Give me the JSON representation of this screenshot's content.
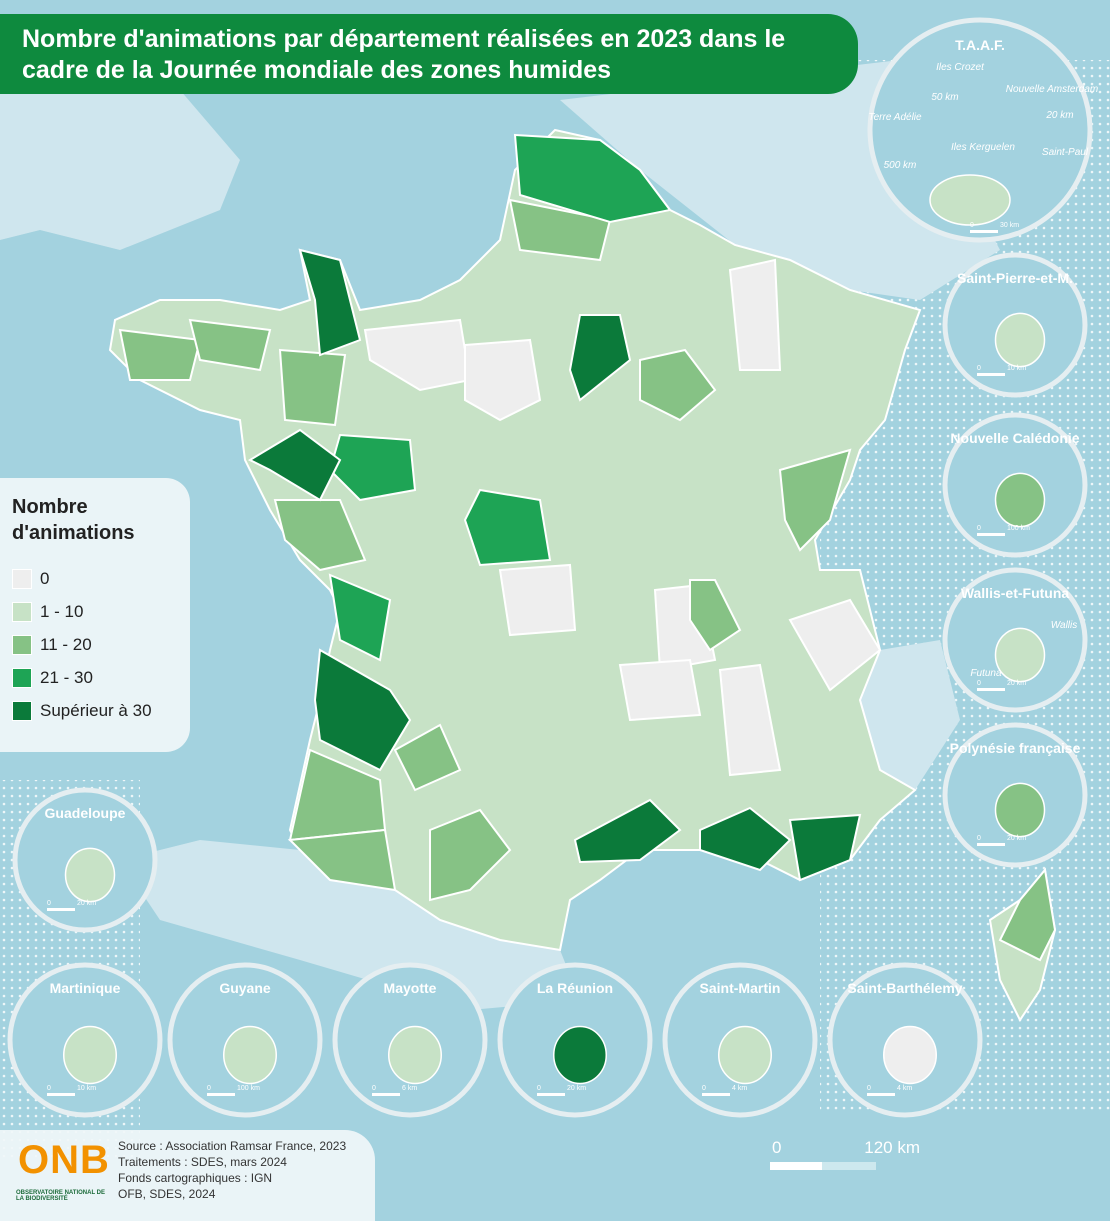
{
  "header": {
    "title": "Nombre d'animations par département réalisées en 2023 dans le cadre de la Journée mondiale des zones humides"
  },
  "legend": {
    "title": "Nombre d'animations",
    "items": [
      {
        "label": "0",
        "color": "#eeeeee"
      },
      {
        "label": "1 - 10",
        "color": "#c7e2c6"
      },
      {
        "label": "11 - 20",
        "color": "#86c285"
      },
      {
        "label": "21 - 30",
        "color": "#1ea455"
      },
      {
        "label": "Supérieur à 30",
        "color": "#0b7a3a"
      }
    ]
  },
  "insets": [
    {
      "name": "T.A.A.F.",
      "color": "#c7e2c6",
      "scale": [
        "0",
        "30 km"
      ],
      "labels": [
        "Iles Crozet",
        "Nouvelle Amsterdam",
        "Terre Adélie",
        "Iles Kerguelen",
        "Saint-Paul",
        "50 km",
        "20 km",
        "500 km"
      ]
    },
    {
      "name": "Saint-Pierre-et-M.",
      "color": "#c7e2c6",
      "scale": [
        "0",
        "10 km"
      ],
      "labels": []
    },
    {
      "name": "Nouvelle Calédonie",
      "color": "#86c285",
      "scale": [
        "0",
        "100 km"
      ],
      "labels": []
    },
    {
      "name": "Wallis-et-Futuna",
      "color": "#c7e2c6",
      "scale": [
        "0",
        "20 km"
      ],
      "labels": [
        "Wallis",
        "Futuna"
      ]
    },
    {
      "name": "Polynésie française",
      "color": "#86c285",
      "scale": [
        "0",
        "20 km"
      ],
      "labels": []
    },
    {
      "name": "Guadeloupe",
      "color": "#c7e2c6",
      "scale": [
        "0",
        "20 km"
      ],
      "labels": []
    },
    {
      "name": "Martinique",
      "color": "#c7e2c6",
      "scale": [
        "0",
        "10 km"
      ],
      "labels": []
    },
    {
      "name": "Guyane",
      "color": "#c7e2c6",
      "scale": [
        "0",
        "100 km"
      ],
      "labels": []
    },
    {
      "name": "Mayotte",
      "color": "#c7e2c6",
      "scale": [
        "0",
        "6 km"
      ],
      "labels": []
    },
    {
      "name": "La Réunion",
      "color": "#0b7a3a",
      "scale": [
        "0",
        "20 km"
      ],
      "labels": []
    },
    {
      "name": "Saint-Martin",
      "color": "#c7e2c6",
      "scale": [
        "0",
        "4 km"
      ],
      "labels": []
    },
    {
      "name": "Saint-Barthélemy",
      "color": "#eeeeee",
      "scale": [
        "0",
        "4 km"
      ],
      "labels": []
    }
  ],
  "scale_bar": {
    "start": "0",
    "end": "120 km"
  },
  "footer": {
    "logo": "ONB",
    "logo_subtitle": "OBSERVATOIRE NATIONAL DE LA BIODIVERSITÉ",
    "sources": [
      "Source : Association Ramsar France, 2023",
      "Traitements : SDES, mars 2024",
      "Fonds cartographiques : IGN",
      "OFB, SDES, 2024"
    ]
  }
}
